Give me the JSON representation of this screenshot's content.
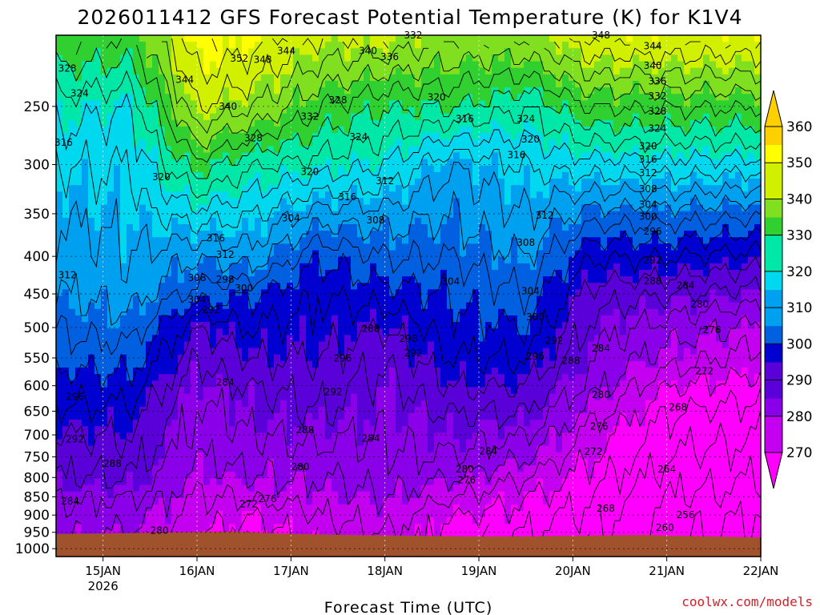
{
  "chart_data": {
    "type": "heatmap",
    "title": "2026011412 GFS Forecast Potential Temperature (K) for K1V4",
    "xlabel": "Forecast Time (UTC)",
    "ylabel": "Pressure (hPa)",
    "credit": "coolwx.com/models",
    "x_start_day": 14.5,
    "x_end_day": 22.0,
    "x_ticks": [
      {
        "day": 15,
        "label": "15JAN",
        "sub": "2026"
      },
      {
        "day": 16,
        "label": "16JAN"
      },
      {
        "day": 17,
        "label": "17JAN"
      },
      {
        "day": 18,
        "label": "18JAN"
      },
      {
        "day": 19,
        "label": "19JAN"
      },
      {
        "day": 20,
        "label": "20JAN"
      },
      {
        "day": 21,
        "label": "21JAN"
      },
      {
        "day": 22,
        "label": "22JAN"
      }
    ],
    "y_ticks": [
      250,
      300,
      350,
      400,
      450,
      500,
      550,
      600,
      650,
      700,
      750,
      800,
      850,
      900,
      950,
      1000
    ],
    "y_top": 200,
    "y_bottom": 1025,
    "colorbar": {
      "levels": [
        270,
        280,
        290,
        300,
        310,
        320,
        330,
        340,
        350,
        360
      ],
      "colors": [
        "#ff00ff",
        "#c400f0",
        "#8a00e8",
        "#5a00d8",
        "#0000d0",
        "#0060e0",
        "#00a0f0",
        "#00d8f0",
        "#00e8a8",
        "#30d030",
        "#80e020",
        "#d0f000",
        "#ffff00",
        "#ffd000",
        "#ff9a00"
      ]
    },
    "surface_pressure": [
      955,
      953,
      950,
      948,
      955,
      958,
      960,
      962,
      962,
      960,
      958,
      962,
      965
    ],
    "theta_profiles": [
      {
        "day": 14.5,
        "p": [
          200,
          250,
          300,
          350,
          400,
          450,
          500,
          550,
          600,
          650,
          700,
          750,
          800,
          850,
          900,
          950
        ],
        "theta": [
          332,
          322,
          316,
          312,
          310,
          308,
          304,
          301,
          298,
          295,
          292,
          290,
          288,
          284,
          282,
          280
        ]
      },
      {
        "day": 15.3,
        "p": [
          200,
          250,
          300,
          350,
          400,
          450,
          500,
          550,
          600,
          650,
          700,
          750,
          800,
          850,
          900,
          950
        ],
        "theta": [
          332,
          320,
          316,
          314,
          312,
          310,
          306,
          302,
          298,
          295,
          292,
          290,
          288,
          284,
          282,
          280
        ]
      },
      {
        "day": 16.0,
        "p": [
          200,
          250,
          300,
          350,
          400,
          450,
          500,
          550,
          600,
          650,
          700,
          750,
          800,
          850,
          900,
          950
        ],
        "theta": [
          352,
          344,
          330,
          318,
          308,
          302,
          292,
          288,
          285,
          283,
          282,
          280,
          278,
          276,
          274,
          272
        ]
      },
      {
        "day": 16.6,
        "p": [
          200,
          250,
          300,
          350,
          400,
          450,
          500,
          550,
          600,
          650,
          700,
          750,
          800,
          850,
          900,
          950
        ],
        "theta": [
          350,
          340,
          324,
          316,
          310,
          300,
          296,
          292,
          288,
          286,
          284,
          282,
          280,
          276,
          272,
          270
        ]
      },
      {
        "day": 17.3,
        "p": [
          200,
          250,
          300,
          350,
          400,
          450,
          500,
          550,
          600,
          650,
          700,
          750,
          800,
          850,
          900,
          950
        ],
        "theta": [
          344,
          332,
          322,
          310,
          300,
          296,
          294,
          292,
          290,
          288,
          285,
          282,
          280,
          278,
          276,
          274
        ]
      },
      {
        "day": 18.0,
        "p": [
          200,
          250,
          300,
          350,
          400,
          450,
          500,
          550,
          600,
          650,
          700,
          750,
          800,
          850,
          900,
          950
        ],
        "theta": [
          344,
          328,
          320,
          310,
          304,
          298,
          292,
          288,
          286,
          285,
          284,
          283,
          282,
          280,
          278,
          276
        ]
      },
      {
        "day": 18.7,
        "p": [
          200,
          250,
          300,
          350,
          400,
          450,
          500,
          550,
          600,
          650,
          700,
          750,
          800,
          850,
          900,
          950
        ],
        "theta": [
          340,
          328,
          312,
          308,
          304,
          300,
          298,
          296,
          292,
          288,
          286,
          284,
          280,
          276,
          272,
          270
        ]
      },
      {
        "day": 19.5,
        "p": [
          200,
          250,
          300,
          350,
          400,
          450,
          500,
          550,
          600,
          650,
          700,
          750,
          800,
          850,
          900,
          950
        ],
        "theta": [
          340,
          324,
          316,
          312,
          308,
          304,
          300,
          296,
          292,
          288,
          284,
          280,
          276,
          272,
          270,
          268
        ]
      },
      {
        "day": 20.2,
        "p": [
          200,
          250,
          300,
          350,
          400,
          450,
          500,
          550,
          600,
          650,
          700,
          750,
          800,
          850,
          900,
          950
        ],
        "theta": [
          348,
          332,
          318,
          306,
          296,
          290,
          286,
          284,
          282,
          278,
          274,
          272,
          270,
          268,
          266,
          266
        ]
      },
      {
        "day": 21.0,
        "p": [
          200,
          250,
          300,
          350,
          400,
          450,
          500,
          550,
          600,
          650,
          700,
          750,
          800,
          850,
          900,
          950
        ],
        "theta": [
          348,
          332,
          318,
          306,
          296,
          288,
          282,
          278,
          272,
          268,
          266,
          264,
          262,
          260,
          258,
          258
        ]
      },
      {
        "day": 22.0,
        "p": [
          200,
          250,
          300,
          350,
          400,
          450,
          500,
          550,
          600,
          650,
          700,
          750,
          800,
          850,
          900,
          950
        ],
        "theta": [
          348,
          332,
          318,
          304,
          294,
          286,
          278,
          274,
          270,
          266,
          264,
          262,
          260,
          258,
          256,
          256
        ]
      }
    ],
    "contour_labels": [
      {
        "day": 14.62,
        "p": 222,
        "text": "328"
      },
      {
        "day": 14.75,
        "p": 240,
        "text": "324"
      },
      {
        "day": 14.58,
        "p": 280,
        "text": "316"
      },
      {
        "day": 15.62,
        "p": 312,
        "text": "320"
      },
      {
        "day": 15.87,
        "p": 230,
        "text": "344"
      },
      {
        "day": 16.45,
        "p": 215,
        "text": "352"
      },
      {
        "day": 16.7,
        "p": 216,
        "text": "348"
      },
      {
        "day": 16.95,
        "p": 210,
        "text": "344"
      },
      {
        "day": 16.33,
        "p": 250,
        "text": "340"
      },
      {
        "day": 17.2,
        "p": 258,
        "text": "332"
      },
      {
        "day": 16.6,
        "p": 276,
        "text": "328"
      },
      {
        "day": 17.72,
        "p": 275,
        "text": "324"
      },
      {
        "day": 17.82,
        "p": 210,
        "text": "340"
      },
      {
        "day": 18.05,
        "p": 214,
        "text": "336"
      },
      {
        "day": 17.5,
        "p": 245,
        "text": "328"
      },
      {
        "day": 18.3,
        "p": 200,
        "text": "332"
      },
      {
        "day": 17.2,
        "p": 307,
        "text": "320"
      },
      {
        "day": 17.6,
        "p": 332,
        "text": "316"
      },
      {
        "day": 18.0,
        "p": 316,
        "text": "312"
      },
      {
        "day": 18.55,
        "p": 243,
        "text": "320"
      },
      {
        "day": 18.85,
        "p": 260,
        "text": "316"
      },
      {
        "day": 19.7,
        "p": 352,
        "text": "312"
      },
      {
        "day": 16.2,
        "p": 378,
        "text": "316"
      },
      {
        "day": 16.3,
        "p": 398,
        "text": "312"
      },
      {
        "day": 16.0,
        "p": 428,
        "text": "308"
      },
      {
        "day": 16.3,
        "p": 430,
        "text": "298"
      },
      {
        "day": 16.5,
        "p": 442,
        "text": "300"
      },
      {
        "day": 16.0,
        "p": 458,
        "text": "304"
      },
      {
        "day": 16.15,
        "p": 473,
        "text": "292"
      },
      {
        "day": 17.0,
        "p": 355,
        "text": "304"
      },
      {
        "day": 17.9,
        "p": 357,
        "text": "308"
      },
      {
        "day": 18.7,
        "p": 433,
        "text": "304"
      },
      {
        "day": 17.55,
        "p": 551,
        "text": "296"
      },
      {
        "day": 17.85,
        "p": 502,
        "text": "288"
      },
      {
        "day": 18.25,
        "p": 518,
        "text": "298"
      },
      {
        "day": 18.3,
        "p": 542,
        "text": "292"
      },
      {
        "day": 17.45,
        "p": 612,
        "text": "292"
      },
      {
        "day": 16.3,
        "p": 594,
        "text": "284"
      },
      {
        "day": 17.15,
        "p": 689,
        "text": "288"
      },
      {
        "day": 17.85,
        "p": 708,
        "text": "284"
      },
      {
        "day": 17.1,
        "p": 774,
        "text": "280"
      },
      {
        "day": 16.55,
        "p": 870,
        "text": "272"
      },
      {
        "day": 16.75,
        "p": 855,
        "text": "276"
      },
      {
        "day": 18.85,
        "p": 780,
        "text": "280"
      },
      {
        "day": 18.87,
        "p": 807,
        "text": "276"
      },
      {
        "day": 19.1,
        "p": 737,
        "text": "284"
      },
      {
        "day": 14.62,
        "p": 424,
        "text": "312"
      },
      {
        "day": 14.45,
        "p": 453,
        "text": "308"
      },
      {
        "day": 14.45,
        "p": 513,
        "text": "304"
      },
      {
        "day": 14.5,
        "p": 572,
        "text": "300"
      },
      {
        "day": 14.7,
        "p": 621,
        "text": "296"
      },
      {
        "day": 14.7,
        "p": 710,
        "text": "292"
      },
      {
        "day": 15.1,
        "p": 766,
        "text": "288"
      },
      {
        "day": 14.65,
        "p": 862,
        "text": "284"
      },
      {
        "day": 15.6,
        "p": 945,
        "text": "280"
      },
      {
        "day": 19.5,
        "p": 260,
        "text": "324"
      },
      {
        "day": 19.55,
        "p": 277,
        "text": "320"
      },
      {
        "day": 19.4,
        "p": 291,
        "text": "316"
      },
      {
        "day": 19.5,
        "p": 383,
        "text": "308"
      },
      {
        "day": 19.55,
        "p": 446,
        "text": "304"
      },
      {
        "day": 19.6,
        "p": 484,
        "text": "300"
      },
      {
        "day": 19.8,
        "p": 521,
        "text": "292"
      },
      {
        "day": 19.6,
        "p": 547,
        "text": "296"
      },
      {
        "day": 19.98,
        "p": 555,
        "text": "288"
      },
      {
        "day": 20.3,
        "p": 534,
        "text": "284"
      },
      {
        "day": 20.3,
        "p": 617,
        "text": "280"
      },
      {
        "day": 20.28,
        "p": 682,
        "text": "276"
      },
      {
        "day": 20.22,
        "p": 738,
        "text": "272"
      },
      {
        "day": 20.35,
        "p": 882,
        "text": "268"
      },
      {
        "day": 21.0,
        "p": 780,
        "text": "264"
      },
      {
        "day": 21.12,
        "p": 642,
        "text": "268"
      },
      {
        "day": 21.4,
        "p": 573,
        "text": "272"
      },
      {
        "day": 21.48,
        "p": 504,
        "text": "276"
      },
      {
        "day": 21.35,
        "p": 465,
        "text": "280"
      },
      {
        "day": 21.2,
        "p": 438,
        "text": "284"
      },
      {
        "day": 20.85,
        "p": 432,
        "text": "288"
      },
      {
        "day": 20.85,
        "p": 405,
        "text": "292"
      },
      {
        "day": 20.85,
        "p": 370,
        "text": "296"
      },
      {
        "day": 20.8,
        "p": 353,
        "text": "300"
      },
      {
        "day": 20.8,
        "p": 340,
        "text": "304"
      },
      {
        "day": 20.8,
        "p": 324,
        "text": "308"
      },
      {
        "day": 20.8,
        "p": 308,
        "text": "312"
      },
      {
        "day": 20.8,
        "p": 295,
        "text": "316"
      },
      {
        "day": 20.8,
        "p": 283,
        "text": "320"
      },
      {
        "day": 20.9,
        "p": 268,
        "text": "324"
      },
      {
        "day": 20.9,
        "p": 254,
        "text": "328"
      },
      {
        "day": 20.9,
        "p": 242,
        "text": "332"
      },
      {
        "day": 20.9,
        "p": 231,
        "text": "336"
      },
      {
        "day": 20.85,
        "p": 220,
        "text": "340"
      },
      {
        "day": 20.85,
        "p": 207,
        "text": "344"
      },
      {
        "day": 20.3,
        "p": 200,
        "text": "348"
      },
      {
        "day": 21.2,
        "p": 900,
        "text": "256"
      },
      {
        "day": 20.98,
        "p": 936,
        "text": "260"
      }
    ]
  }
}
